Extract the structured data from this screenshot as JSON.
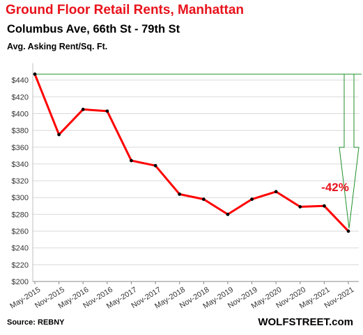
{
  "chart_data": {
    "type": "line",
    "title": "Ground  Floor Retail Rents, Manhattan",
    "subtitle": "Columbus Ave, 66th St - 79th St",
    "ylabel": "Avg. Asking Rent/Sq. Ft.",
    "categories": [
      "May-2015",
      "Nov-2015",
      "May-2016",
      "Nov-2016",
      "May-2017",
      "Nov-2017",
      "May-2018",
      "Nov-2018",
      "May-2019",
      "Nov-2019",
      "May-2020",
      "Nov-2020",
      "May-2021",
      "Nov-2021"
    ],
    "values": [
      447,
      375,
      405,
      403,
      344,
      338,
      304,
      298,
      280,
      298,
      307,
      289,
      290,
      260
    ],
    "ylim": [
      200,
      460
    ],
    "yticks": [
      "$200",
      "$220",
      "$240",
      "$260",
      "$280",
      "$300",
      "$320",
      "$340",
      "$360",
      "$380",
      "$400",
      "$420",
      "$440"
    ],
    "grid": true,
    "series_color": "#ff0000",
    "annotation_color": "#e8121b",
    "arrow_color": "#1f8f2a",
    "annotation": "-42%"
  },
  "footer": {
    "source": "Source: REBNY",
    "brand": "WOLFSTREET.com"
  }
}
